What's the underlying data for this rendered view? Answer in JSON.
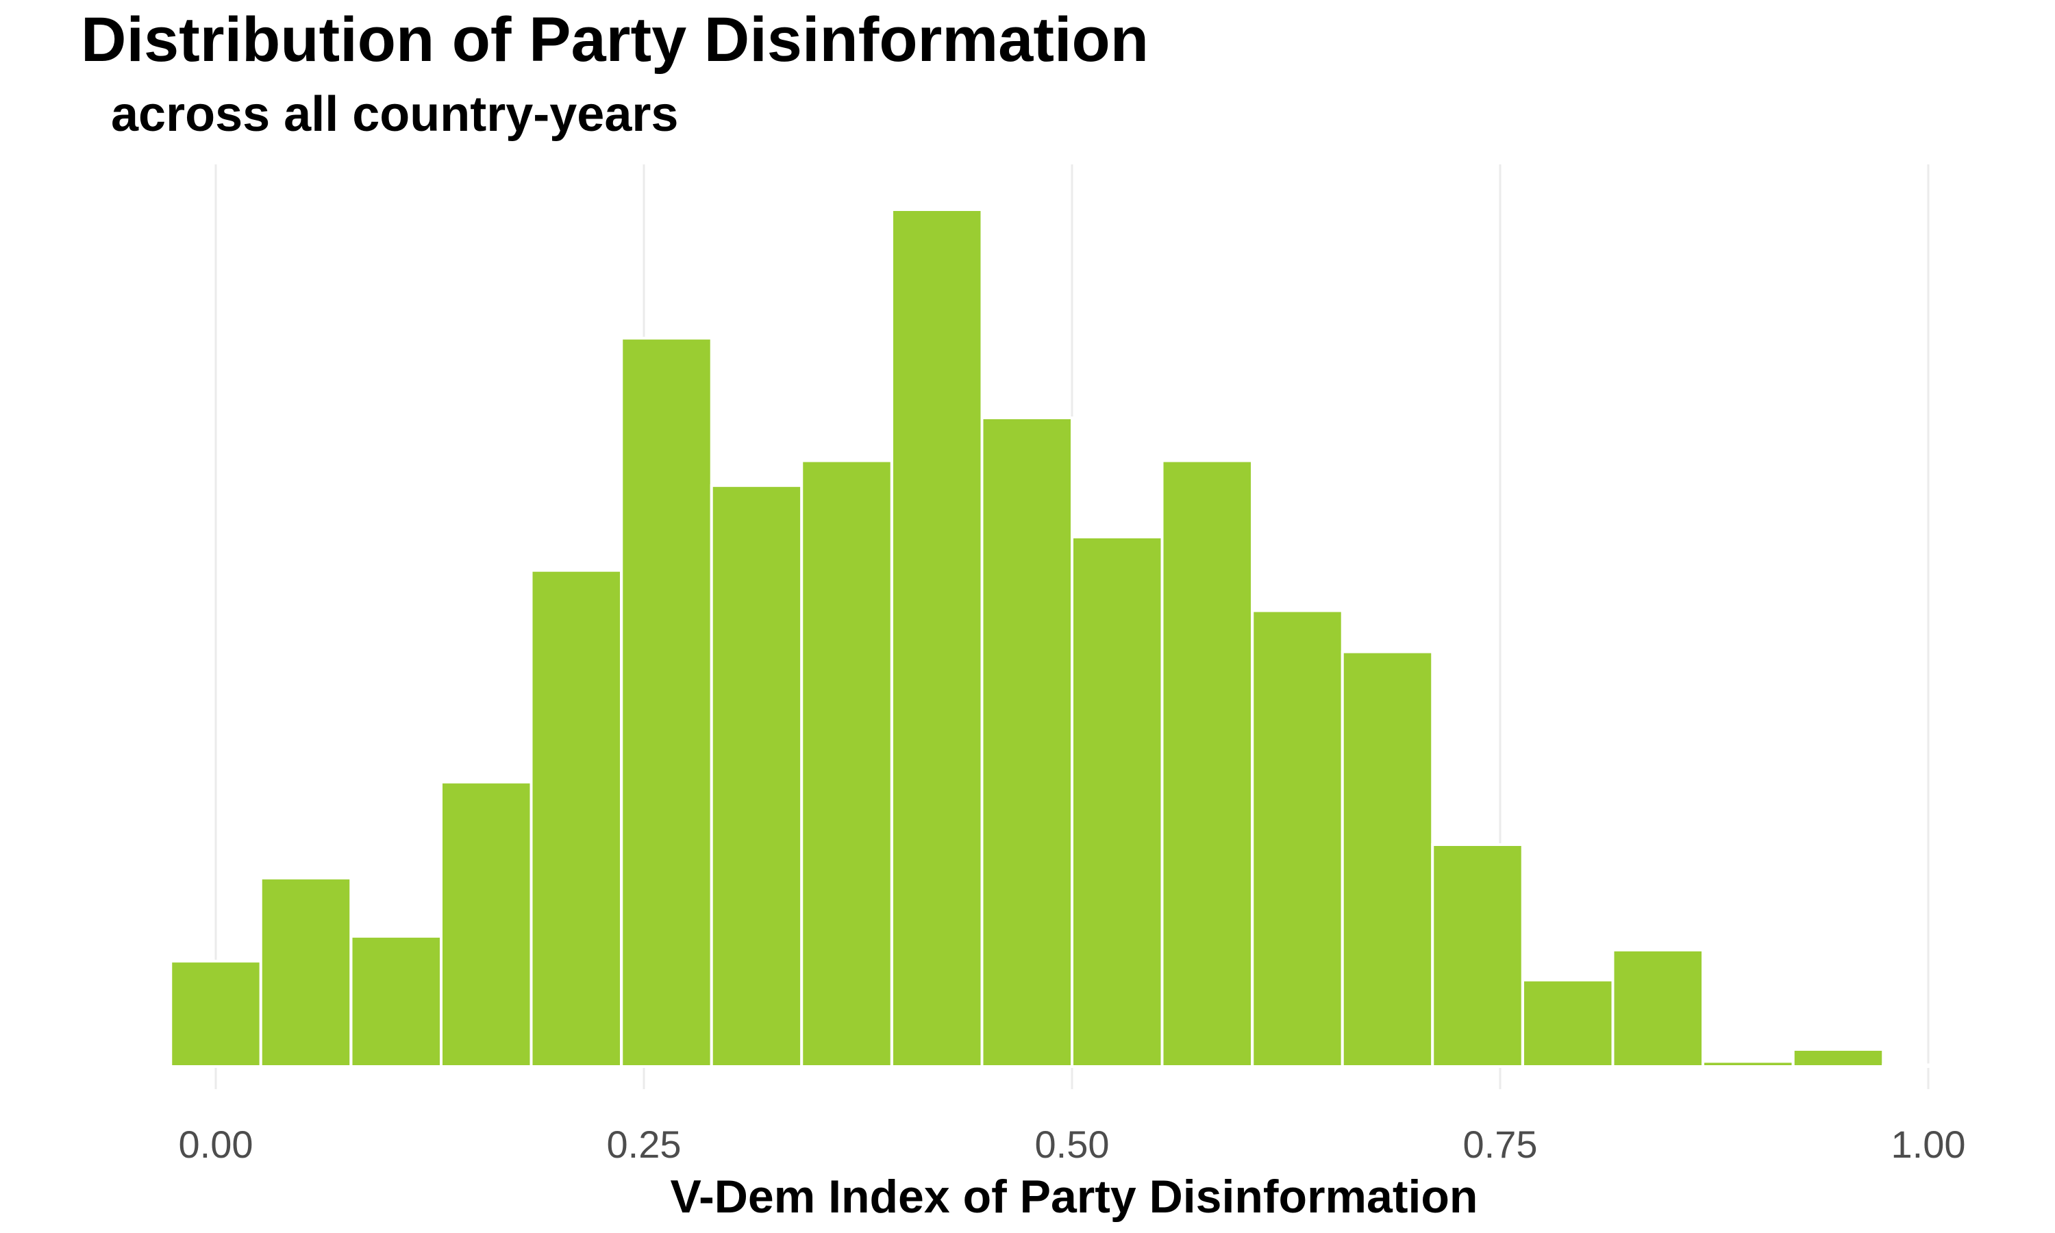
{
  "chart_data": {
    "type": "bar",
    "title": "Distribution of Party Disinformation",
    "subtitle": "across all country-years",
    "xlabel": "V-Dem Index of Party Disinformation",
    "ylabel": "",
    "xlim": [
      -0.026,
      1.026
    ],
    "ylim": [
      0,
      1.0
    ],
    "x_ticks": [
      0.0,
      0.25,
      0.5,
      0.75,
      1.0
    ],
    "x_tick_labels": [
      "0.00",
      "0.25",
      "0.50",
      "0.75",
      "1.00"
    ],
    "y_axis_visible": false,
    "grid": "vertical-major",
    "bar_color": "#9acd32",
    "bar_edge_color": "#ffffff",
    "bins": [
      {
        "x": 0.0,
        "value": 0.123
      },
      {
        "x": 0.0526,
        "value": 0.22
      },
      {
        "x": 0.1053,
        "value": 0.152
      },
      {
        "x": 0.1579,
        "value": 0.332
      },
      {
        "x": 0.2105,
        "value": 0.579
      },
      {
        "x": 0.2632,
        "value": 0.85
      },
      {
        "x": 0.3158,
        "value": 0.678
      },
      {
        "x": 0.3684,
        "value": 0.707
      },
      {
        "x": 0.4211,
        "value": 1.0
      },
      {
        "x": 0.4737,
        "value": 0.757
      },
      {
        "x": 0.5263,
        "value": 0.618
      },
      {
        "x": 0.5789,
        "value": 0.707
      },
      {
        "x": 0.6316,
        "value": 0.532
      },
      {
        "x": 0.6842,
        "value": 0.484
      },
      {
        "x": 0.7368,
        "value": 0.259
      },
      {
        "x": 0.7895,
        "value": 0.101
      },
      {
        "x": 0.8421,
        "value": 0.136
      },
      {
        "x": 0.8947,
        "value": 0.006
      },
      {
        "x": 0.9474,
        "value": 0.02
      },
      {
        "x": 1.0,
        "value": 0.002
      }
    ],
    "bin_width": 0.0526
  }
}
